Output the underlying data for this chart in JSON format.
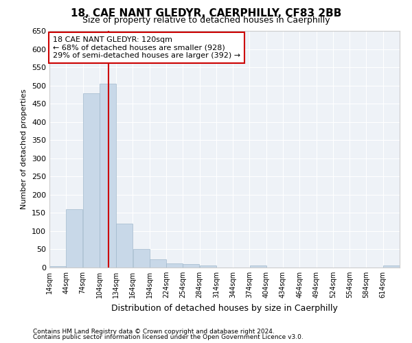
{
  "title": "18, CAE NANT GLEDYR, CAERPHILLY, CF83 2BB",
  "subtitle": "Size of property relative to detached houses in Caerphilly",
  "xlabel": "Distribution of detached houses by size in Caerphilly",
  "ylabel": "Number of detached properties",
  "bar_color": "#c8d8e8",
  "bar_edge_color": "#a0b8cc",
  "background_color": "#eef2f7",
  "grid_color": "#ffffff",
  "vline_x": 120,
  "vline_color": "#cc0000",
  "annotation_line1": "18 CAE NANT GLEDYR: 120sqm",
  "annotation_line2": "← 68% of detached houses are smaller (928)",
  "annotation_line3": "29% of semi-detached houses are larger (392) →",
  "annotation_box_color": "#cc0000",
  "bins": [
    14,
    44,
    74,
    104,
    134,
    164,
    194,
    224,
    254,
    284,
    314,
    344,
    374,
    404,
    434,
    464,
    494,
    524,
    554,
    584,
    614
  ],
  "bin_labels": [
    "14sqm",
    "44sqm",
    "74sqm",
    "104sqm",
    "134sqm",
    "164sqm",
    "194sqm",
    "224sqm",
    "254sqm",
    "284sqm",
    "314sqm",
    "344sqm",
    "374sqm",
    "404sqm",
    "434sqm",
    "464sqm",
    "494sqm",
    "524sqm",
    "554sqm",
    "584sqm",
    "614sqm"
  ],
  "values": [
    4,
    160,
    478,
    505,
    120,
    50,
    22,
    12,
    10,
    6,
    0,
    0,
    5,
    0,
    0,
    0,
    0,
    0,
    0,
    0,
    5
  ],
  "ylim": [
    0,
    650
  ],
  "yticks": [
    0,
    50,
    100,
    150,
    200,
    250,
    300,
    350,
    400,
    450,
    500,
    550,
    600,
    650
  ],
  "footnote1": "Contains HM Land Registry data © Crown copyright and database right 2024.",
  "footnote2": "Contains public sector information licensed under the Open Government Licence v3.0."
}
